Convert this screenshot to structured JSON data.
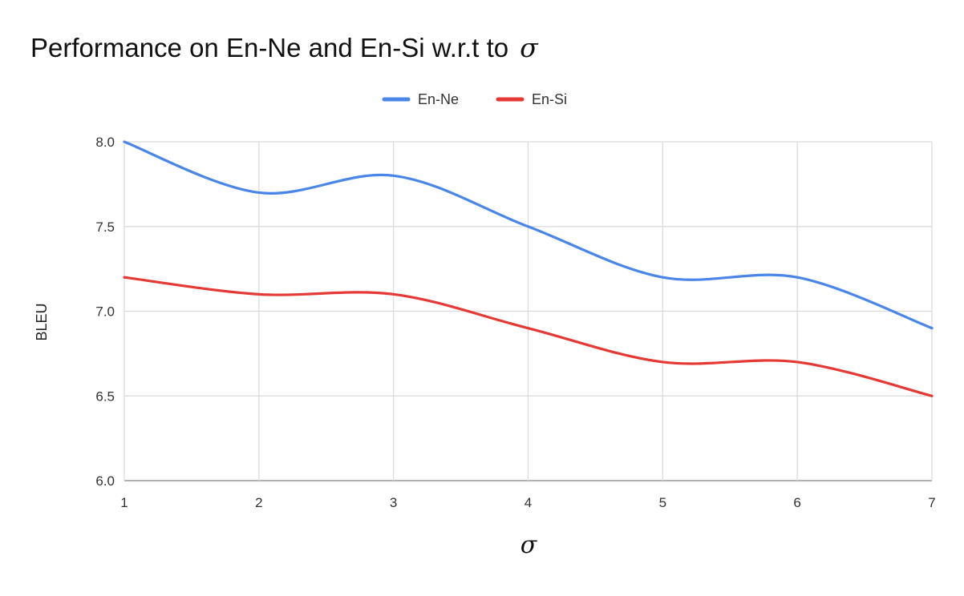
{
  "chart_data": {
    "type": "line",
    "title": "Performance on En-Ne and En-Si w.r.t to",
    "title_symbol": "σ",
    "xlabel": "σ",
    "ylabel": "BLEU",
    "x": [
      1,
      2,
      3,
      4,
      5,
      6,
      7
    ],
    "x_ticks": [
      "1",
      "2",
      "3",
      "4",
      "5",
      "6",
      "7"
    ],
    "y_ticks": [
      "6.0",
      "6.5",
      "7.0",
      "7.5",
      "8.0"
    ],
    "xlim": [
      1,
      7
    ],
    "ylim": [
      6.0,
      8.0
    ],
    "grid": true,
    "legend_position": "top-center",
    "series": [
      {
        "name": "En-Ne",
        "color": "#4a86e8",
        "values": [
          8.0,
          7.7,
          7.8,
          7.5,
          7.2,
          7.2,
          6.9
        ]
      },
      {
        "name": "En-Si",
        "color": "#e53935",
        "values": [
          7.2,
          7.1,
          7.1,
          6.9,
          6.7,
          6.7,
          6.5
        ]
      }
    ]
  }
}
